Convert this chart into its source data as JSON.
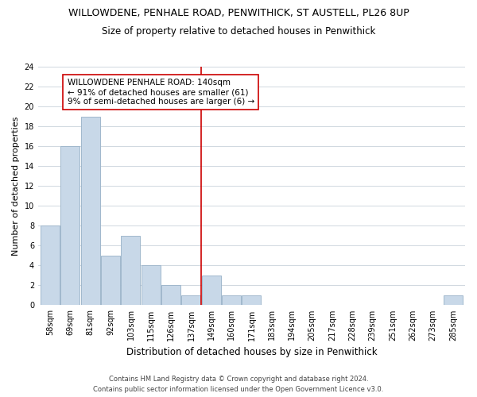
{
  "title": "WILLOWDENE, PENHALE ROAD, PENWITHICK, ST AUSTELL, PL26 8UP",
  "subtitle": "Size of property relative to detached houses in Penwithick",
  "xlabel": "Distribution of detached houses by size in Penwithick",
  "ylabel": "Number of detached properties",
  "bin_labels": [
    "58sqm",
    "69sqm",
    "81sqm",
    "92sqm",
    "103sqm",
    "115sqm",
    "126sqm",
    "137sqm",
    "149sqm",
    "160sqm",
    "171sqm",
    "183sqm",
    "194sqm",
    "205sqm",
    "217sqm",
    "228sqm",
    "239sqm",
    "251sqm",
    "262sqm",
    "273sqm",
    "285sqm"
  ],
  "bar_heights": [
    8,
    16,
    19,
    5,
    7,
    4,
    2,
    1,
    3,
    1,
    1,
    0,
    0,
    0,
    0,
    0,
    0,
    0,
    0,
    0,
    1
  ],
  "bar_color": "#c8d8e8",
  "bar_edge_color": "#a0b8cc",
  "vline_index": 7,
  "vline_color": "#cc0000",
  "annotation_line1": "WILLOWDENE PENHALE ROAD: 140sqm",
  "annotation_line2": "← 91% of detached houses are smaller (61)",
  "annotation_line3": "9% of semi-detached houses are larger (6) →",
  "annotation_box_color": "#ffffff",
  "annotation_box_edge": "#cc0000",
  "ylim": [
    0,
    24
  ],
  "yticks": [
    0,
    2,
    4,
    6,
    8,
    10,
    12,
    14,
    16,
    18,
    20,
    22,
    24
  ],
  "footer_line1": "Contains HM Land Registry data © Crown copyright and database right 2024.",
  "footer_line2": "Contains public sector information licensed under the Open Government Licence v3.0.",
  "background_color": "#ffffff",
  "grid_color": "#d0d8e0",
  "title_fontsize": 9,
  "subtitle_fontsize": 8.5,
  "ylabel_fontsize": 8,
  "xlabel_fontsize": 8.5,
  "tick_fontsize": 7,
  "annot_fontsize": 7.5,
  "footer_fontsize": 6
}
